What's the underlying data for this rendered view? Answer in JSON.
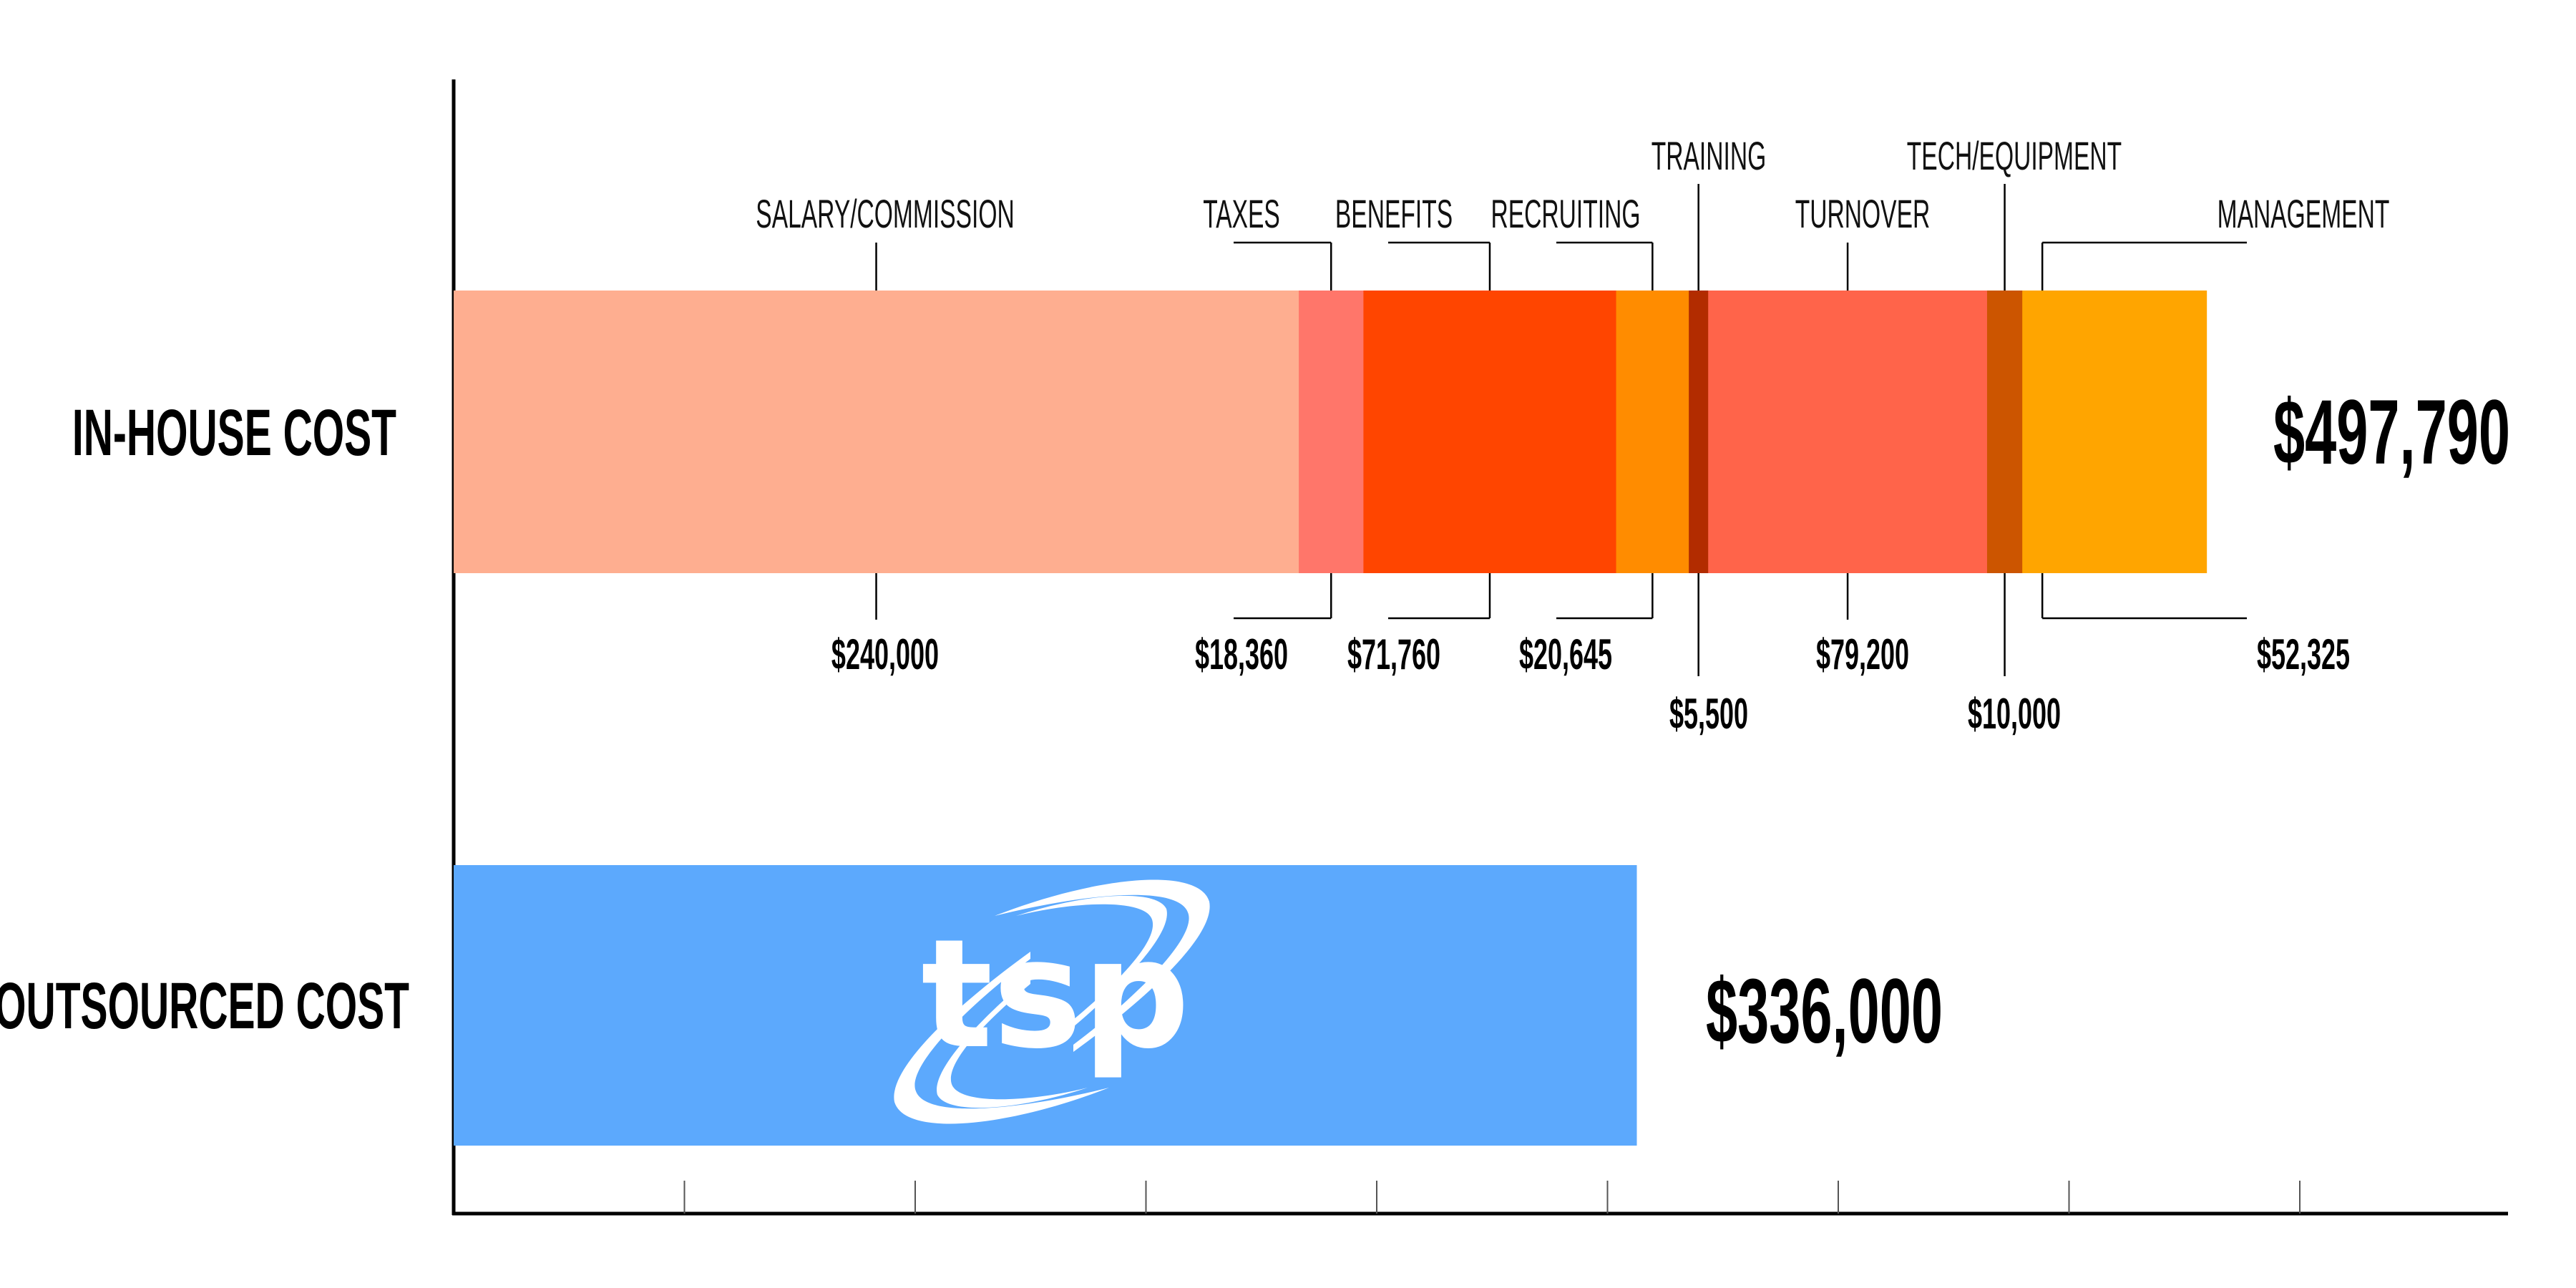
{
  "chart_data": {
    "type": "bar",
    "orientation": "horizontal",
    "stacked": true,
    "categories": [
      "IN-HOUSE COST",
      "OUTSOURCED COST"
    ],
    "in_house": {
      "label": "IN-HOUSE COST",
      "total_label": "$497,790",
      "total": 497790,
      "segments": [
        {
          "name": "SALARY/COMMISSION",
          "value": 240000,
          "value_label": "$240,000",
          "color": "#FEAE90"
        },
        {
          "name": "TAXES",
          "value": 18360,
          "value_label": "$18,360",
          "color": "#FF766A"
        },
        {
          "name": "BENEFITS",
          "value": 71760,
          "value_label": "$71,760",
          "color": "#FF4500"
        },
        {
          "name": "RECRUITING",
          "value": 20645,
          "value_label": "$20,645",
          "color": "#FF8C00"
        },
        {
          "name": "TRAINING",
          "value": 5500,
          "value_label": "$5,500",
          "color": "#B22C00"
        },
        {
          "name": "TURNOVER",
          "value": 79200,
          "value_label": "$79,200",
          "color": "#FF644A"
        },
        {
          "name": "TECH/EQUIPMENT",
          "value": 10000,
          "value_label": "$10,000",
          "color": "#CC5500"
        },
        {
          "name": "MANAGEMENT",
          "value": 52325,
          "value_label": "$52,325",
          "color": "#FFA500"
        }
      ]
    },
    "outsourced": {
      "label": "OUTSOURCED COST",
      "total_label": "$336,000",
      "value": 336000,
      "color": "#5CA9FD",
      "logo_text": "tsp"
    },
    "xlim": [
      0,
      583000
    ],
    "grid": false,
    "legend": "none"
  }
}
